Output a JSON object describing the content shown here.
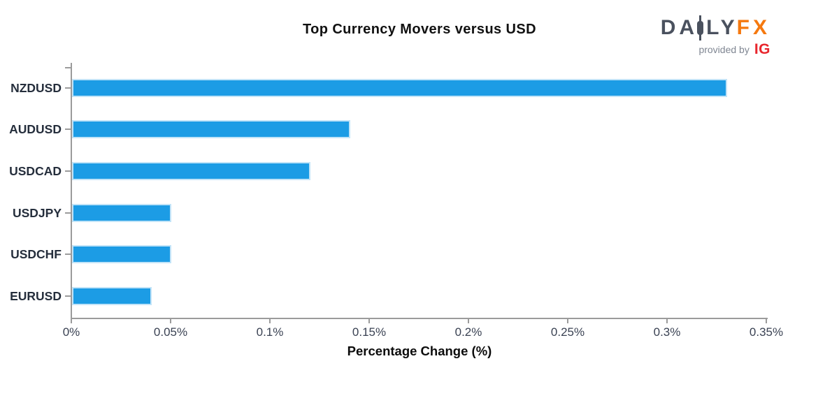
{
  "chart_data": {
    "type": "bar",
    "orientation": "horizontal",
    "title": "Top Currency Movers versus USD",
    "xlabel": "Percentage Change (%)",
    "categories": [
      "NZDUSD",
      "AUDUSD",
      "USDCAD",
      "USDJPY",
      "USDCHF",
      "EURUSD"
    ],
    "values": [
      0.33,
      0.14,
      0.12,
      0.05,
      0.05,
      0.04
    ],
    "value_unit": "%",
    "xlim": [
      0,
      0.35
    ],
    "xticks": [
      {
        "value": 0,
        "label": "0%"
      },
      {
        "value": 0.05,
        "label": "0.05%"
      },
      {
        "value": 0.1,
        "label": "0.1%"
      },
      {
        "value": 0.15,
        "label": "0.15%"
      },
      {
        "value": 0.2,
        "label": "0.2%"
      },
      {
        "value": 0.25,
        "label": "0.25%"
      },
      {
        "value": 0.3,
        "label": "0.3%"
      },
      {
        "value": 0.35,
        "label": "0.35%"
      }
    ],
    "grid": false,
    "legend": "none",
    "bar_color": "#1c9ce5"
  },
  "branding": {
    "brand_part1": "DA",
    "brand_part2": "LY",
    "brand_part3": "FX",
    "brand_icon": "candlestick-icon",
    "tagline": "provided by",
    "partner": "IG"
  },
  "colors": {
    "bar_fill": "#1c9ce5",
    "bar_edge": "#c2e4f8",
    "axis_line": "#9b9b9b",
    "category_label": "#252e3c",
    "tick_label": "#3a4253",
    "title_text": "#111111",
    "brand": "#4a515e",
    "brand_accent": "#f5790f",
    "partner": "#e8262d"
  }
}
